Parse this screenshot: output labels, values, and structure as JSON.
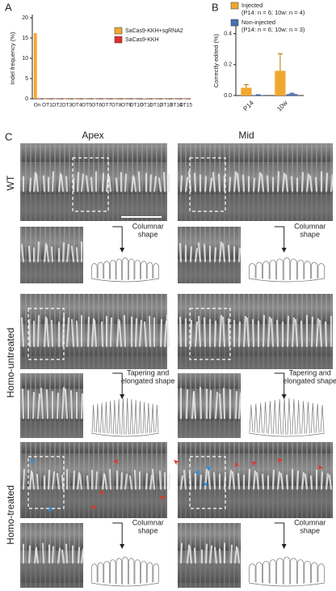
{
  "panels": [
    "A",
    "B",
    "C"
  ],
  "chart_data": [
    {
      "type": "bar",
      "y_label": "Indel frequency (%)",
      "categories": [
        "On",
        "OT1",
        "OT2",
        "OT3",
        "OT4",
        "OT5",
        "OT6",
        "OT7",
        "OT8",
        "OT9",
        "OT10",
        "OT11",
        "OT12",
        "OT13",
        "OT14",
        "OT15"
      ],
      "series": [
        {
          "name": "SaCas9-KKH+sgRNA2",
          "color": "#f0a830",
          "values": [
            16.2,
            0.05,
            0.05,
            0.05,
            0.05,
            0.05,
            0.05,
            0.05,
            0.05,
            0.05,
            0.05,
            0.1,
            0.05,
            0.05,
            0.05,
            0.05
          ]
        },
        {
          "name": "SaCas9-KKH",
          "color": "#e0302a",
          "values": [
            0.05,
            0.05,
            0.05,
            0.05,
            0.05,
            0.05,
            0.05,
            0.05,
            0.05,
            0.05,
            0.05,
            0.05,
            0.05,
            0.05,
            0.05,
            0.05
          ]
        }
      ],
      "ylim": [
        0,
        20
      ],
      "yticks": [
        0,
        5,
        10,
        15,
        20
      ]
    },
    {
      "type": "bar",
      "y_label": "Correctly edited (%)",
      "categories": [
        "P14",
        "10w"
      ],
      "series": [
        {
          "name": "Injected",
          "note": "(P14: n = 6; 10w: n = 4)",
          "color": "#f0a830",
          "values": [
            0.05,
            0.16
          ],
          "errors": [
            0.02,
            0.11
          ]
        },
        {
          "name": "Non-injected",
          "note": "(P14: n = 6; 10w: n = 3)",
          "color": "#4a6fb5",
          "values": [
            0.003,
            0.01
          ],
          "errors": [
            0.002,
            0.005
          ]
        }
      ],
      "ylim": [
        0,
        0.45
      ],
      "yticks": [
        {
          "value": 0,
          "label": "0.0"
        },
        0.2,
        0.4
      ]
    }
  ],
  "figure_c": {
    "columns": [
      "Apex",
      "Mid"
    ],
    "rows": [
      "WT",
      "Homo-untreated",
      "Homo-treated"
    ],
    "shape_labels": [
      [
        "Columnar",
        "shape"
      ],
      [
        "Tapering and",
        "elongated shape"
      ]
    ]
  }
}
